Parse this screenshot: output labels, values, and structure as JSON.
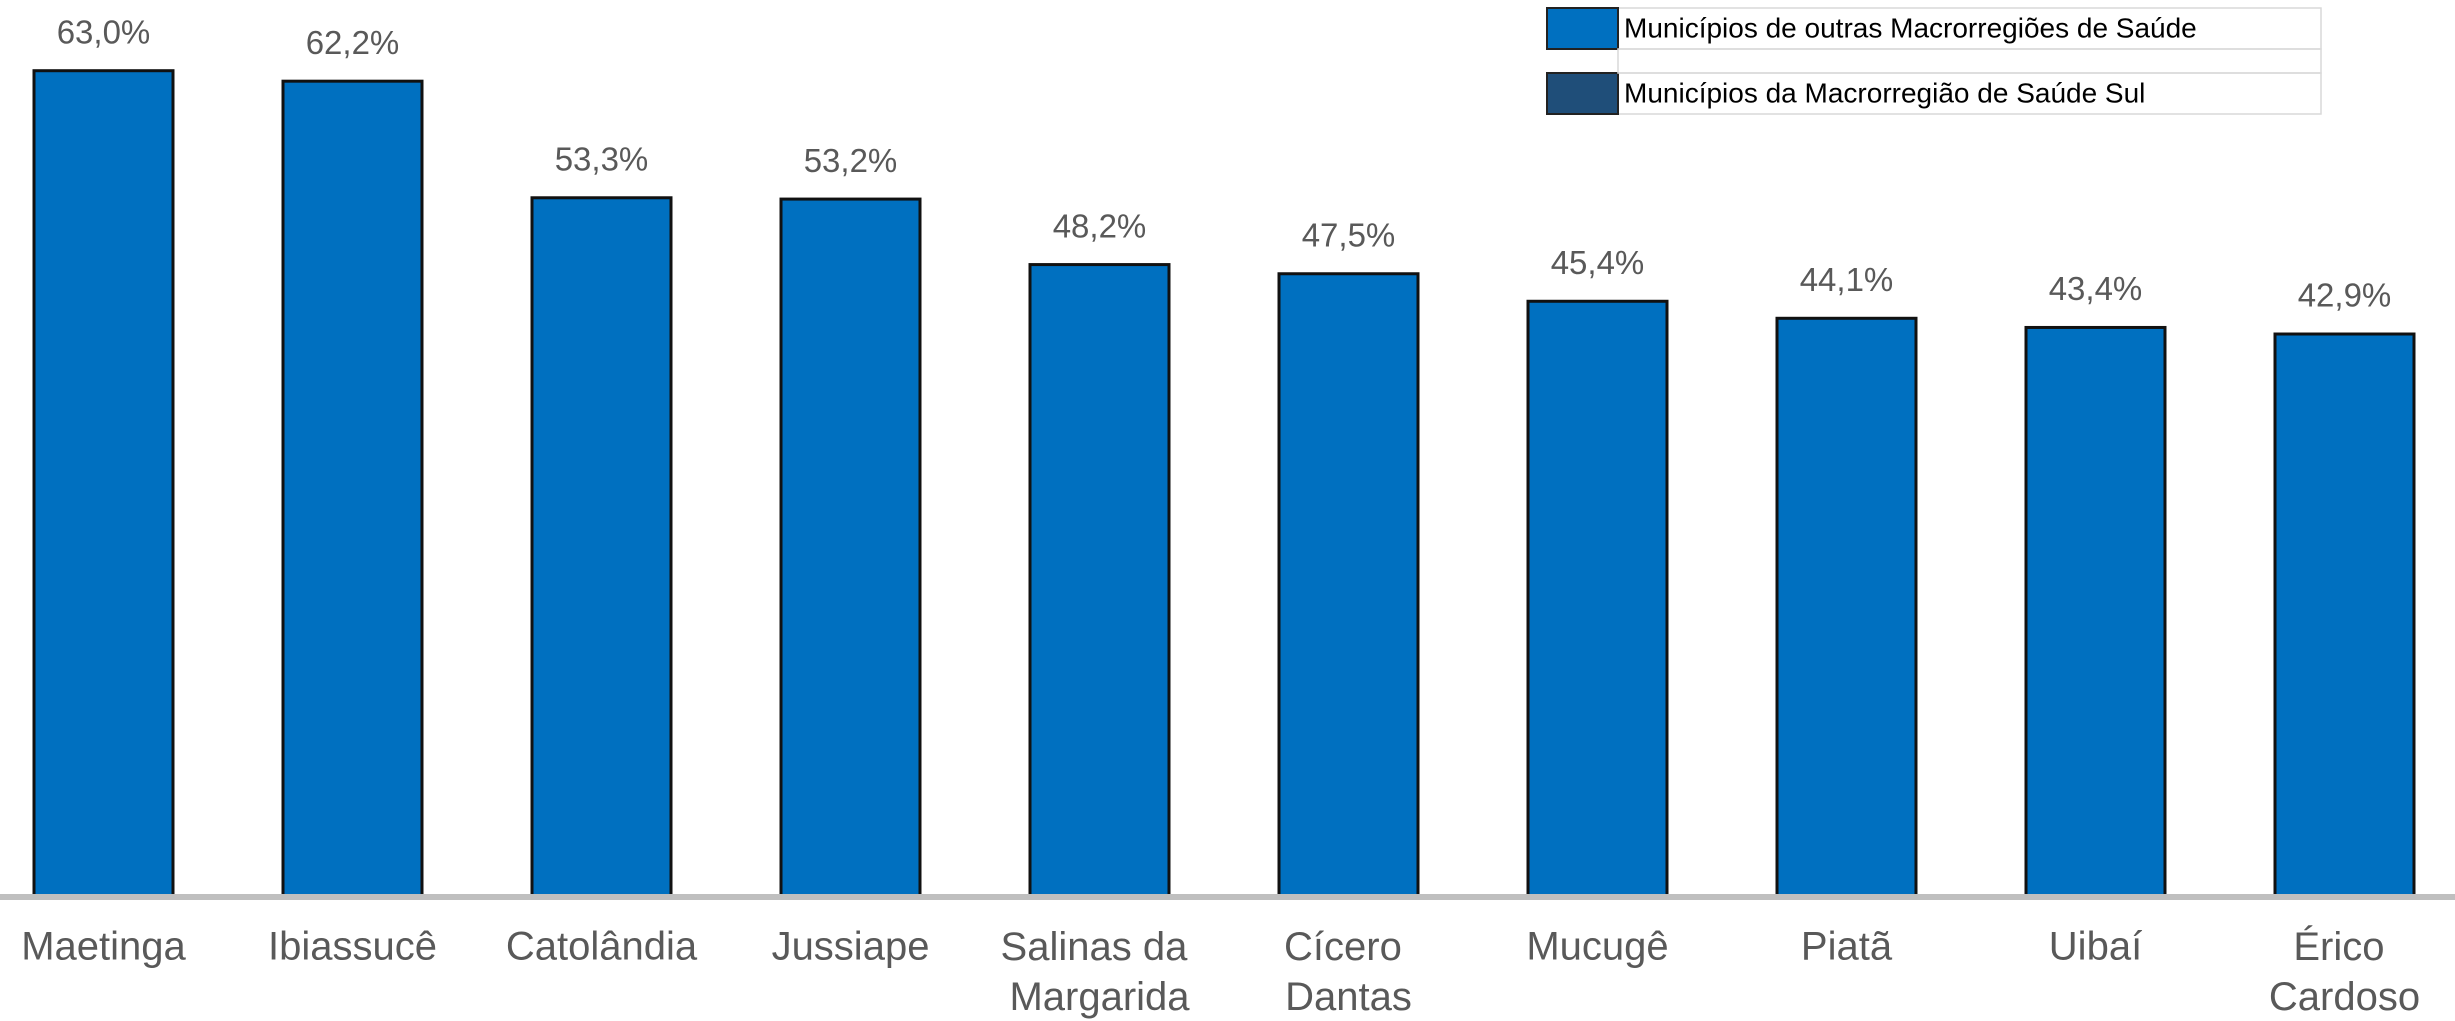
{
  "chart_data": {
    "type": "bar",
    "categories": [
      "Maetinga",
      "Ibiassucê",
      "Catolândia",
      "Jussiape",
      "Salinas da Margarida",
      "Cícero Dantas",
      "Mucugê",
      "Piatã",
      "Uibaí",
      "Érico Cardoso"
    ],
    "series": [
      {
        "name": "Municípios de outras Macrorregiões de Saúde",
        "color": "#0070c0",
        "values": [
          63.0,
          62.2,
          53.3,
          53.2,
          48.2,
          47.5,
          45.4,
          44.1,
          43.4,
          42.9
        ],
        "value_labels": [
          "63,0%",
          "62,2%",
          "53,3%",
          "53,2%",
          "48,2%",
          "47,5%",
          "45,4%",
          "44,1%",
          "43,4%",
          "42,9%"
        ]
      },
      {
        "name": "Municípios da Macrorregião de Saúde Sul",
        "color": "#1f4e79",
        "values": [
          null,
          null,
          null,
          null,
          null,
          null,
          null,
          null,
          null,
          null
        ]
      }
    ],
    "legend": "top-right"
  }
}
